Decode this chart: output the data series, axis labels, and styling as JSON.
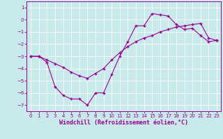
{
  "xlabel": "Windchill (Refroidissement éolien,°C)",
  "ylabel": "",
  "bg_color": "#c8eaea",
  "line_color": "#990099",
  "grid_color": "#ffffff",
  "xlim": [
    -0.5,
    23.5
  ],
  "ylim": [
    -7.5,
    1.5
  ],
  "yticks": [
    1,
    0,
    -1,
    -2,
    -3,
    -4,
    -5,
    -6,
    -7
  ],
  "xticks": [
    0,
    1,
    2,
    3,
    4,
    5,
    6,
    7,
    8,
    9,
    10,
    11,
    12,
    13,
    14,
    15,
    16,
    17,
    18,
    19,
    20,
    21,
    22,
    23
  ],
  "line1_x": [
    0,
    1,
    2,
    3,
    4,
    5,
    6,
    7,
    8,
    9,
    10,
    11,
    12,
    13,
    14,
    15,
    16,
    17,
    18,
    19,
    20,
    21,
    22,
    23
  ],
  "line1_y": [
    -3.0,
    -3.0,
    -3.5,
    -5.5,
    -6.2,
    -6.5,
    -6.5,
    -7.0,
    -6.0,
    -6.0,
    -4.5,
    -3.0,
    -1.8,
    -0.5,
    -0.5,
    0.5,
    0.4,
    0.3,
    -0.4,
    -0.8,
    -0.7,
    -1.3,
    -1.8,
    -1.7
  ],
  "line2_x": [
    0,
    1,
    2,
    3,
    4,
    5,
    6,
    7,
    8,
    9,
    10,
    11,
    12,
    13,
    14,
    15,
    16,
    17,
    18,
    19,
    20,
    21,
    22,
    23
  ],
  "line2_y": [
    -3.0,
    -3.0,
    -3.3,
    -3.6,
    -3.9,
    -4.3,
    -4.6,
    -4.8,
    -4.4,
    -4.0,
    -3.3,
    -2.7,
    -2.2,
    -1.8,
    -1.5,
    -1.3,
    -1.0,
    -0.8,
    -0.6,
    -0.5,
    -0.4,
    -0.3,
    -1.5,
    -1.7
  ],
  "marker": "+",
  "markersize": 3,
  "linewidth": 0.8,
  "tick_fontsize": 5,
  "xlabel_fontsize": 6
}
